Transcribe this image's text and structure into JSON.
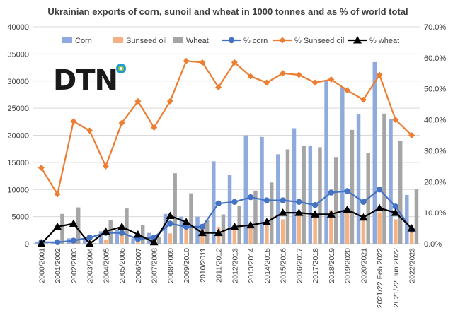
{
  "chart_data": {
    "type": "bar",
    "title": "Ukrainian exports of corn, sunoil and wheat in 1000 tonnes and as % of world total",
    "categories": [
      "2000/2001",
      "2001/2002",
      "2002/2003",
      "2003/2004",
      "2004/2005",
      "2005/2006",
      "2006/2007",
      "2007/2008",
      "2008/2009",
      "2009/2010",
      "2010/2011",
      "2011/2012",
      "2012/2013",
      "2013/2014",
      "2014/2015",
      "2015/2016",
      "2016/2017",
      "2017/2018",
      "2018/2019",
      "2019/2020",
      "2020/2021",
      "2021/22 Feb 2022",
      "2021/22 Jun 2022",
      "2022/2023"
    ],
    "y_left": {
      "min": 0,
      "max": 40000,
      "step": 5000,
      "tick_labels": [
        "0",
        "5000",
        "10000",
        "15000",
        "20000",
        "25000",
        "30000",
        "35000",
        "40000"
      ]
    },
    "y_right": {
      "min": 0,
      "max": 70,
      "step": 10,
      "tick_labels": [
        "0.0%",
        "10.0%",
        "20.0%",
        "30.0%",
        "40.0%",
        "50.0%",
        "60.0%",
        "70.0%"
      ]
    },
    "series": [
      {
        "name": "Corn",
        "kind": "bar",
        "axis": "left",
        "color": "#8faadc",
        "values": [
          400,
          300,
          1000,
          1100,
          2300,
          2500,
          1000,
          2000,
          5500,
          5000,
          5000,
          15200,
          12700,
          20000,
          19700,
          16500,
          21300,
          18000,
          30000,
          28900,
          23900,
          33500,
          23000,
          9000
        ]
      },
      {
        "name": "Sunseed oil",
        "kind": "bar",
        "axis": "left",
        "color": "#f4b183",
        "values": [
          300,
          300,
          700,
          500,
          700,
          1900,
          1500,
          1200,
          1900,
          2900,
          2800,
          3100,
          3300,
          3500,
          4000,
          4500,
          5800,
          5500,
          6200,
          5700,
          4900,
          5800,
          4500,
          2200
        ]
      },
      {
        "name": "Wheat",
        "kind": "bar",
        "axis": "left",
        "color": "#a5a5a5",
        "values": [
          100,
          5500,
          6700,
          100,
          4400,
          6500,
          3400,
          1200,
          13000,
          9300,
          4300,
          5400,
          7000,
          9800,
          11300,
          17400,
          18100,
          17800,
          16000,
          21000,
          16800,
          24000,
          19000,
          10000
        ]
      },
      {
        "name": "% corn",
        "kind": "line",
        "axis": "right",
        "color": "#4472c4",
        "marker": "circle",
        "values": [
          0.5,
          0.5,
          1.0,
          2.0,
          3.5,
          3.5,
          1.5,
          2.0,
          6.5,
          5.5,
          5.5,
          13.0,
          13.5,
          15.0,
          14.0,
          14.0,
          13.5,
          12.5,
          16.5,
          17.0,
          13.5,
          17.5,
          12.0,
          4.5
        ]
      },
      {
        "name": "% Sunseed oil",
        "kind": "line",
        "axis": "right",
        "color": "#ed7d31",
        "marker": "diamond",
        "values": [
          24.5,
          16.0,
          39.5,
          36.5,
          25.0,
          39.0,
          46.0,
          37.5,
          46.0,
          59.0,
          58.5,
          50.5,
          58.5,
          54.0,
          52.0,
          55.0,
          54.5,
          52.0,
          53.0,
          49.5,
          46.5,
          54.5,
          40.0,
          35.0
        ]
      },
      {
        "name": "% wheat",
        "kind": "line",
        "axis": "right",
        "color": "#000000",
        "marker": "triangle",
        "values": [
          0.0,
          5.5,
          6.5,
          0.0,
          4.0,
          5.5,
          3.0,
          0.5,
          9.0,
          7.0,
          3.5,
          3.5,
          5.5,
          6.0,
          7.0,
          10.0,
          10.0,
          9.5,
          9.5,
          11.0,
          8.5,
          11.5,
          10.0,
          5.0
        ]
      }
    ],
    "grid": true,
    "legend_position": "top"
  },
  "logo": {
    "text": "DTN",
    "name": "DTN"
  }
}
